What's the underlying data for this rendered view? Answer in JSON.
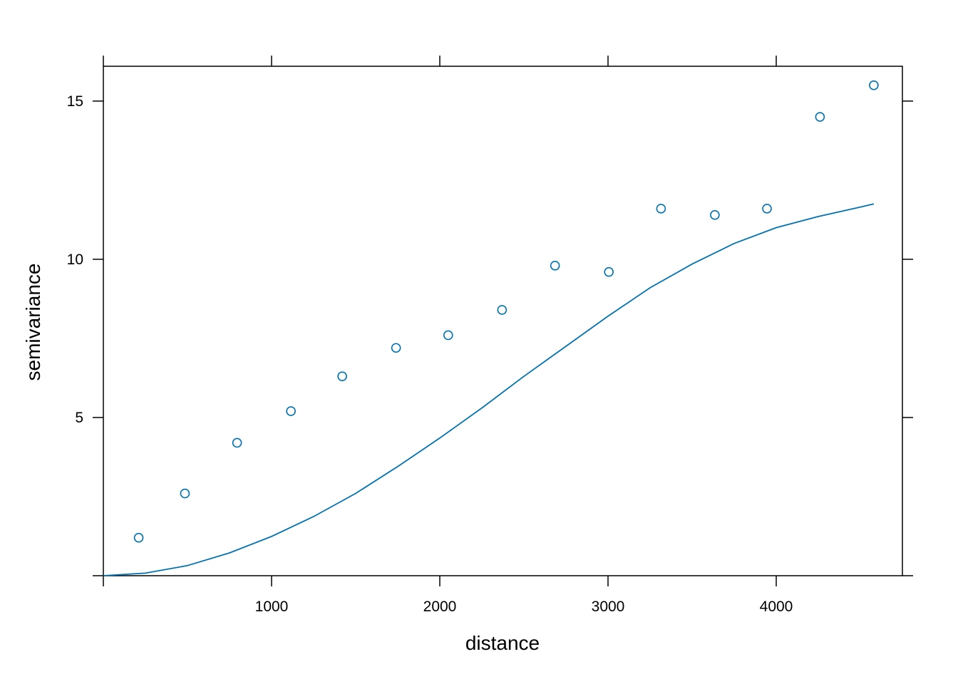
{
  "chart_data": {
    "type": "scatter",
    "xlabel": "distance",
    "ylabel": "semivariance",
    "xlim": [
      0,
      4750
    ],
    "ylim": [
      0,
      16.1
    ],
    "x_ticks": [
      1000,
      2000,
      3000,
      4000
    ],
    "x_tick_labels": [
      "1000",
      "2000",
      "3000",
      "4000"
    ],
    "y_ticks": [
      5,
      10,
      15
    ],
    "y_tick_labels": [
      "5",
      "10",
      "15"
    ],
    "grid": false,
    "color": "#0072B2",
    "points": {
      "x": [
        210,
        485,
        795,
        1115,
        1420,
        1740,
        2050,
        2370,
        2685,
        3005,
        3315,
        3635,
        3945,
        4260,
        4580
      ],
      "y": [
        1.2,
        2.6,
        4.2,
        5.2,
        6.3,
        7.2,
        7.6,
        8.4,
        9.8,
        9.6,
        11.6,
        11.4,
        11.6,
        14.5,
        15.5
      ]
    },
    "model_curve": {
      "x": [
        0,
        250,
        500,
        750,
        1000,
        1250,
        1500,
        1750,
        2000,
        2250,
        2500,
        2750,
        3000,
        3250,
        3500,
        3750,
        4000,
        4250,
        4500,
        4580
      ],
      "y": [
        0,
        0.08,
        0.32,
        0.72,
        1.24,
        1.87,
        2.6,
        3.45,
        4.35,
        5.3,
        6.3,
        7.25,
        8.2,
        9.1,
        9.85,
        10.5,
        11.0,
        11.35,
        11.65,
        11.75
      ]
    }
  }
}
